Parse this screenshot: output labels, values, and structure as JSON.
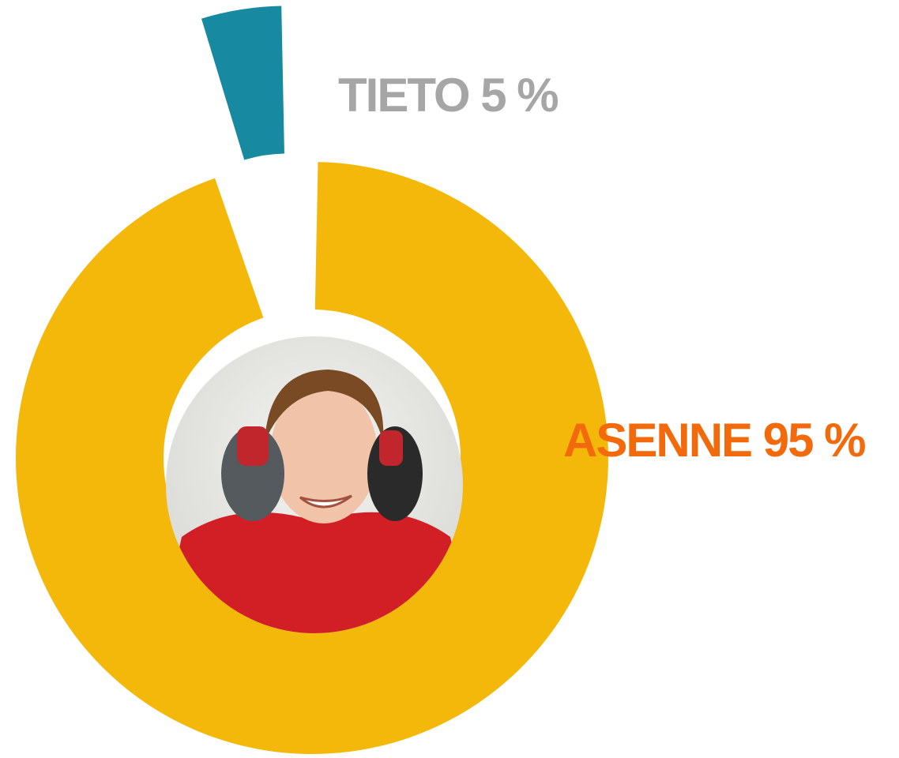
{
  "chart_data": {
    "type": "pie",
    "categories": [
      "TIETO",
      "ASENNE"
    ],
    "values": [
      5,
      95
    ],
    "value_labels": [
      "5 %",
      "95 %"
    ],
    "colors": [
      "#178aa2",
      "#f3b80a"
    ],
    "label_colors": [
      "#a6a6a6",
      "#f26a0c"
    ]
  }
}
